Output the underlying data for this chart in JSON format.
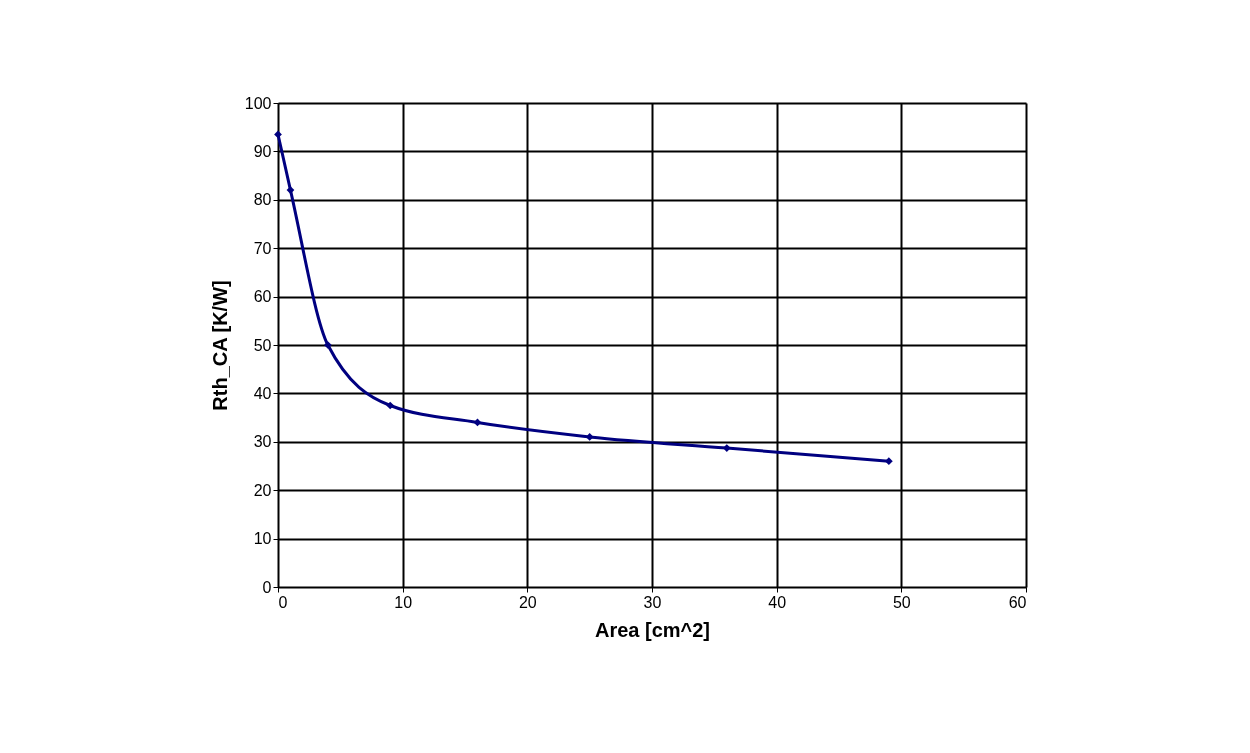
{
  "chart_data": {
    "type": "line",
    "xlabel": "Area [cm^2]",
    "ylabel": "Rth_CA [K/W]",
    "x": [
      0,
      1,
      4,
      9,
      16,
      25,
      36,
      49
    ],
    "series": [
      {
        "color": "#000080",
        "values": [
          93.5,
          82,
          50,
          37.5,
          34,
          31,
          28.7,
          26
        ]
      }
    ],
    "xlim": [
      0,
      60
    ],
    "xticks": [
      0,
      10,
      20,
      30,
      40,
      50,
      60
    ],
    "ylim": [
      0,
      100
    ],
    "yticks": [
      0,
      10,
      20,
      30,
      40,
      50,
      60,
      70,
      80,
      90,
      100
    ],
    "grid": true,
    "marker": "diamond",
    "line_style": "solid"
  }
}
